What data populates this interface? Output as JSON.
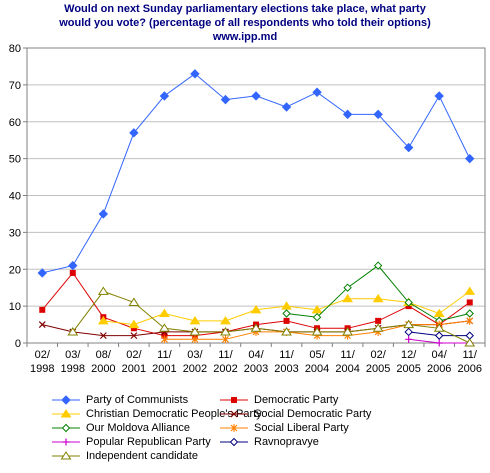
{
  "chart_data": {
    "type": "line",
    "title": [
      "Would on next Sunday parliamentary elections take place, what party",
      "would you vote? (percentage of all respondents who told their options)",
      "www.ipp.md"
    ],
    "categories": [
      "02/\n1998",
      "03/\n1998",
      "08/\n2000",
      "02/\n2001",
      "11/\n2001",
      "03/\n2002",
      "11/\n2002",
      "04/\n2003",
      "11/\n2003",
      "05/\n2004",
      "11/\n2004",
      "02/\n2005",
      "12/\n2005",
      "04/\n2006",
      "11/\n2006"
    ],
    "ylim": [
      0,
      80
    ],
    "yticks": [
      0,
      10,
      20,
      30,
      40,
      50,
      60,
      70,
      80
    ],
    "grid": true,
    "legend_position": "bottom",
    "series": [
      {
        "name": "Party of Communists",
        "color": "#3366ff",
        "marker": "diamond-filled",
        "values": [
          19,
          21,
          35,
          57,
          67,
          73,
          66,
          67,
          64,
          68,
          62,
          62,
          53,
          67,
          50
        ]
      },
      {
        "name": "Democratic Party",
        "color": "#dd0000",
        "marker": "square-filled",
        "values": [
          9,
          19,
          7,
          4,
          2,
          2,
          3,
          5,
          6,
          4,
          4,
          6,
          10,
          5,
          11
        ]
      },
      {
        "name": "Christian Democratic People's Party",
        "color": "#ffcc00",
        "marker": "triangle-filled",
        "values": [
          null,
          null,
          6,
          5,
          8,
          6,
          6,
          9,
          10,
          9,
          12,
          12,
          11,
          8,
          14
        ]
      },
      {
        "name": "Social Democratic Party",
        "color": "#800000",
        "marker": "x",
        "values": [
          5,
          3,
          2,
          2,
          3,
          3,
          3,
          4,
          3,
          3,
          3,
          4,
          5,
          5,
          6
        ]
      },
      {
        "name": "Our Moldova Alliance",
        "color": "#008000",
        "marker": "diamond-open",
        "values": [
          null,
          null,
          null,
          null,
          null,
          null,
          null,
          null,
          8,
          7,
          15,
          21,
          11,
          6,
          8
        ]
      },
      {
        "name": "Social Liberal Party",
        "color": "#ff8000",
        "marker": "asterisk",
        "values": [
          null,
          null,
          null,
          null,
          1,
          1,
          1,
          3,
          3,
          2,
          2,
          3,
          5,
          5,
          6
        ]
      },
      {
        "name": "Popular Republican Party",
        "color": "#cc00cc",
        "marker": "plus",
        "values": [
          null,
          null,
          null,
          null,
          null,
          null,
          null,
          null,
          null,
          null,
          null,
          null,
          1,
          0,
          0
        ]
      },
      {
        "name": "Ravnopravye",
        "color": "#000080",
        "marker": "diamond-open",
        "values": [
          null,
          null,
          null,
          null,
          null,
          null,
          null,
          null,
          null,
          null,
          null,
          null,
          3,
          2,
          2
        ]
      },
      {
        "name": "Independent candidate",
        "color": "#808000",
        "marker": "triangle-open",
        "values": [
          null,
          3,
          14,
          11,
          4,
          3,
          3,
          4,
          3,
          3,
          3,
          4,
          5,
          4,
          0
        ]
      }
    ]
  }
}
